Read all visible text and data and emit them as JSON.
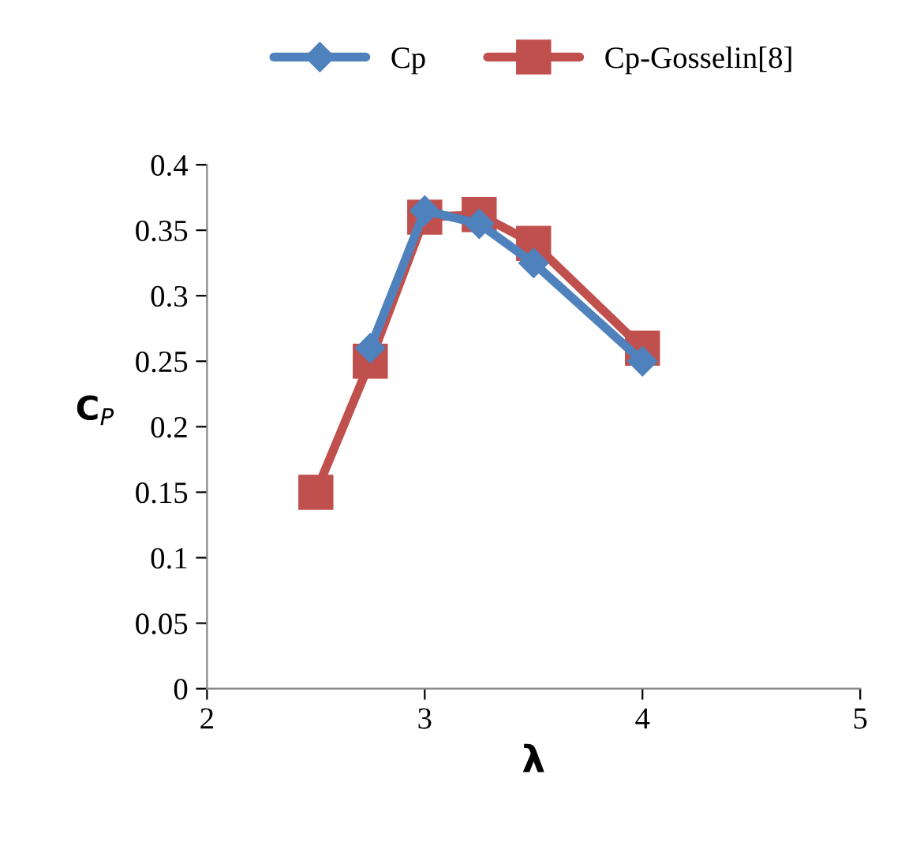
{
  "chart_data": {
    "type": "line",
    "xlabel": "λ",
    "ylabel": "C$_{P}$",
    "x": [
      2.5,
      2.75,
      3.0,
      3.25,
      3.5,
      4.0
    ],
    "series": [
      {
        "name": "Cp",
        "color": "#4f81bd",
        "marker": "diamond",
        "values": [
          null,
          0.26,
          0.365,
          0.355,
          0.325,
          0.25
        ]
      },
      {
        "name": "Cp-Gosselin[8]",
        "color": "#c0504d",
        "marker": "square",
        "values": [
          0.15,
          0.25,
          0.36,
          0.362,
          0.34,
          0.26
        ]
      }
    ],
    "xlim": [
      2,
      5
    ],
    "xticks": [
      2,
      3,
      4,
      5
    ],
    "ylim": [
      0,
      0.4
    ],
    "yticks": [
      {
        "value": 0,
        "label": "0"
      },
      0.05,
      0.1,
      0.15,
      0.2,
      0.25,
      0.3,
      0.35,
      0.4
    ],
    "grid": false,
    "legend": "top",
    "line_style": "solid"
  }
}
